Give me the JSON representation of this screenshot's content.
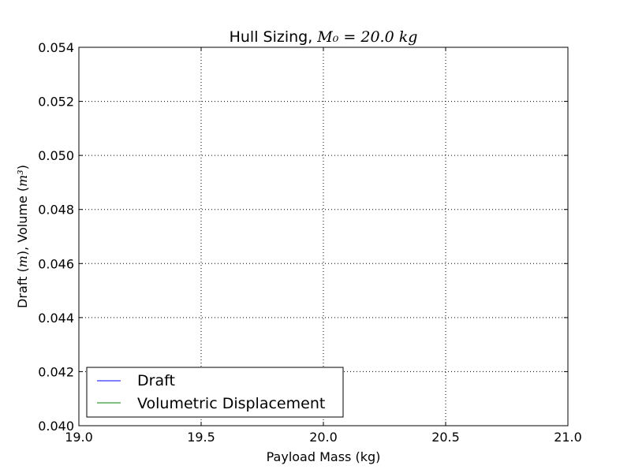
{
  "chart_data": {
    "type": "line",
    "title_prefix": "Hull Sizing, ",
    "title_math": "M₀ = 20.0 kg",
    "xlabel": "Payload Mass (kg)",
    "ylabel_parts": [
      "Draft (",
      "m",
      "), Volume (",
      "m³",
      ")"
    ],
    "xlim": [
      19.0,
      21.0
    ],
    "ylim": [
      0.04,
      0.054
    ],
    "xticks": [
      "19.0",
      "19.5",
      "20.0",
      "20.5",
      "21.0"
    ],
    "yticks": [
      "0.040",
      "0.042",
      "0.044",
      "0.046",
      "0.048",
      "0.050",
      "0.052",
      "0.054"
    ],
    "grid": true,
    "legend_position": "lower-left",
    "series": [
      {
        "name": "Draft",
        "color": "#0000ff",
        "x": [],
        "y": []
      },
      {
        "name": "Volumetric Displacement",
        "color": "#008000",
        "x": [],
        "y": []
      }
    ]
  }
}
